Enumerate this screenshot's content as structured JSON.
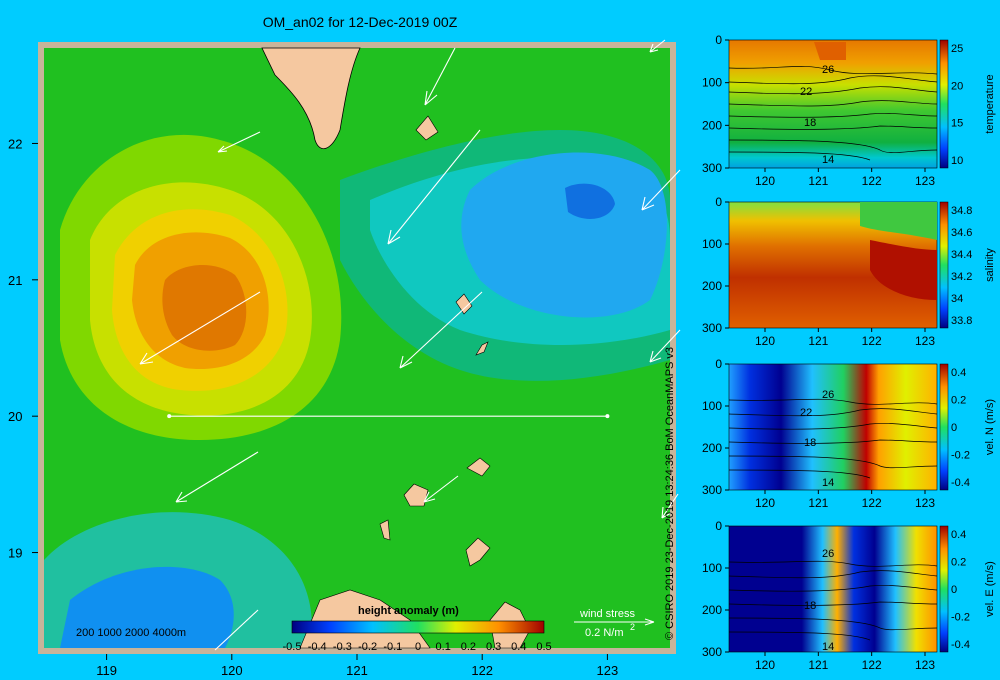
{
  "title": "OM_an02 for 12-Dec-2019 00Z",
  "credit": "© CSIRO 2019   23-Dec-2019 13:24:36 BoM OceanMAPS v3",
  "colors": {
    "background": "#00ccff",
    "land": "#f5c8a0",
    "frame": "#c8b49a"
  },
  "chart_data": [
    {
      "type": "heatmap",
      "name": "map",
      "x_ticks": [
        "119",
        "120",
        "121",
        "122",
        "123"
      ],
      "y_ticks": [
        "22",
        "21",
        "20",
        "19"
      ],
      "xlim": [
        118.5,
        123.5
      ],
      "ylim": [
        18.3,
        22.7
      ],
      "colorbar": {
        "title": "height anomaly (m)",
        "ticks": [
          "-0.5",
          "-0.4",
          "-0.3",
          "-0.2",
          "-0.1",
          "0",
          "0.1",
          "0.2",
          "0.3",
          "0.4",
          "0.5"
        ],
        "range": [
          -0.5,
          0.5
        ]
      },
      "depth_legend": [
        "200",
        "1000",
        "2000",
        "4000m"
      ],
      "wind_legend": {
        "title": "wind stress",
        "label": "0.2 N/m",
        "superscript": "2"
      },
      "section_line": {
        "lat": 20,
        "lon_start": 119.5,
        "lon_end": 123.0
      },
      "features": [
        {
          "kind": "high",
          "lon": 119.8,
          "lat": 20.7,
          "value": 0.35
        },
        {
          "kind": "low",
          "lon": 122.6,
          "lat": 21.5,
          "value": -0.2
        }
      ]
    },
    {
      "type": "heatmap",
      "name": "temperature",
      "colorbar_label": "temperature",
      "x_ticks": [
        "120",
        "121",
        "122",
        "123"
      ],
      "y_ticks": [
        "0",
        "100",
        "200",
        "300"
      ],
      "cbar_ticks": [
        "25",
        "20",
        "15",
        "10"
      ],
      "contour_labels": [
        "26",
        "22",
        "18",
        "14"
      ]
    },
    {
      "type": "heatmap",
      "name": "salinity",
      "colorbar_label": "salinity",
      "x_ticks": [
        "120",
        "121",
        "122",
        "123"
      ],
      "y_ticks": [
        "0",
        "100",
        "200",
        "300"
      ],
      "cbar_ticks": [
        "34.8",
        "34.6",
        "34.4",
        "34.2",
        "34",
        "33.8"
      ]
    },
    {
      "type": "heatmap",
      "name": "vel-n",
      "colorbar_label": "vel. N (m/s)",
      "x_ticks": [
        "120",
        "121",
        "122",
        "123"
      ],
      "y_ticks": [
        "0",
        "100",
        "200",
        "300"
      ],
      "cbar_ticks": [
        "0.4",
        "0.2",
        "0",
        "-0.2",
        "-0.4"
      ],
      "contour_labels": [
        "26",
        "22",
        "18",
        "14"
      ]
    },
    {
      "type": "heatmap",
      "name": "vel-e",
      "colorbar_label": "vel. E (m/s)",
      "x_ticks": [
        "120",
        "121",
        "122",
        "123"
      ],
      "y_ticks": [
        "0",
        "100",
        "200",
        "300"
      ],
      "cbar_ticks": [
        "0.4",
        "0.2",
        "0",
        "-0.2",
        "-0.4"
      ],
      "contour_labels": [
        "26",
        "18",
        "14"
      ]
    }
  ]
}
